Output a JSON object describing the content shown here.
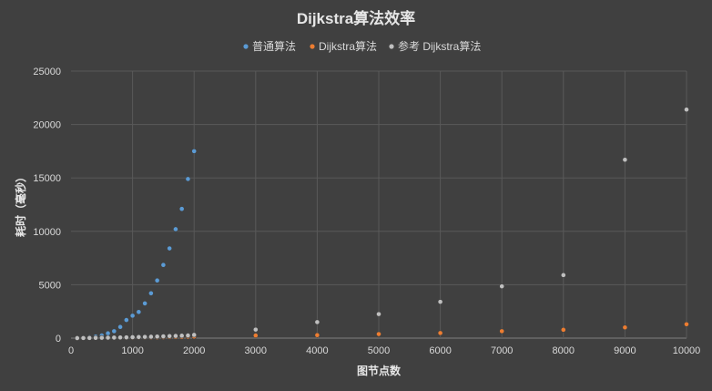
{
  "chart_data": {
    "type": "scatter",
    "title": "Dijkstra算法效率",
    "xlabel": "图节点数",
    "ylabel": "耗时（毫秒）",
    "xlim": [
      0,
      10000
    ],
    "ylim": [
      0,
      25000
    ],
    "xticks": [
      0,
      1000,
      2000,
      3000,
      4000,
      5000,
      6000,
      7000,
      8000,
      9000,
      10000
    ],
    "yticks": [
      0,
      5000,
      10000,
      15000,
      20000,
      25000
    ],
    "grid": true,
    "legend_position": "top",
    "series": [
      {
        "name": "普通算法",
        "color": "#5b9bd5",
        "x": [
          100,
          200,
          300,
          400,
          500,
          600,
          700,
          800,
          900,
          1000,
          1100,
          1200,
          1300,
          1400,
          1500,
          1600,
          1700,
          1800,
          1900,
          2000
        ],
        "y": [
          10,
          40,
          80,
          150,
          250,
          450,
          650,
          1050,
          1700,
          2100,
          2450,
          3250,
          4200,
          5400,
          6850,
          8400,
          10200,
          12100,
          14900,
          17500
        ]
      },
      {
        "name": "Dijkstra算法",
        "color": "#ed7d31",
        "x": [
          100,
          200,
          300,
          400,
          500,
          600,
          700,
          800,
          900,
          1000,
          1100,
          1200,
          1300,
          1400,
          1500,
          1600,
          1700,
          1800,
          1900,
          2000,
          3000,
          4000,
          5000,
          6000,
          7000,
          8000,
          9000,
          10000
        ],
        "y": [
          2,
          4,
          6,
          10,
          14,
          18,
          24,
          30,
          36,
          44,
          52,
          60,
          68,
          78,
          88,
          100,
          110,
          122,
          134,
          148,
          250,
          280,
          380,
          480,
          650,
          780,
          1000,
          1300
        ]
      },
      {
        "name": "参考 Dijkstra算法",
        "color": "#bfbfbf",
        "x": [
          100,
          200,
          300,
          400,
          500,
          600,
          700,
          800,
          900,
          1000,
          1100,
          1200,
          1300,
          1400,
          1500,
          1600,
          1700,
          1800,
          1900,
          2000,
          3000,
          4000,
          5000,
          6000,
          7000,
          8000,
          9000,
          10000
        ],
        "y": [
          5,
          10,
          16,
          24,
          32,
          42,
          52,
          63,
          75,
          88,
          102,
          117,
          133,
          150,
          168,
          187,
          207,
          228,
          250,
          300,
          800,
          1500,
          2250,
          3400,
          4850,
          5900,
          16700,
          21400
        ]
      }
    ]
  }
}
